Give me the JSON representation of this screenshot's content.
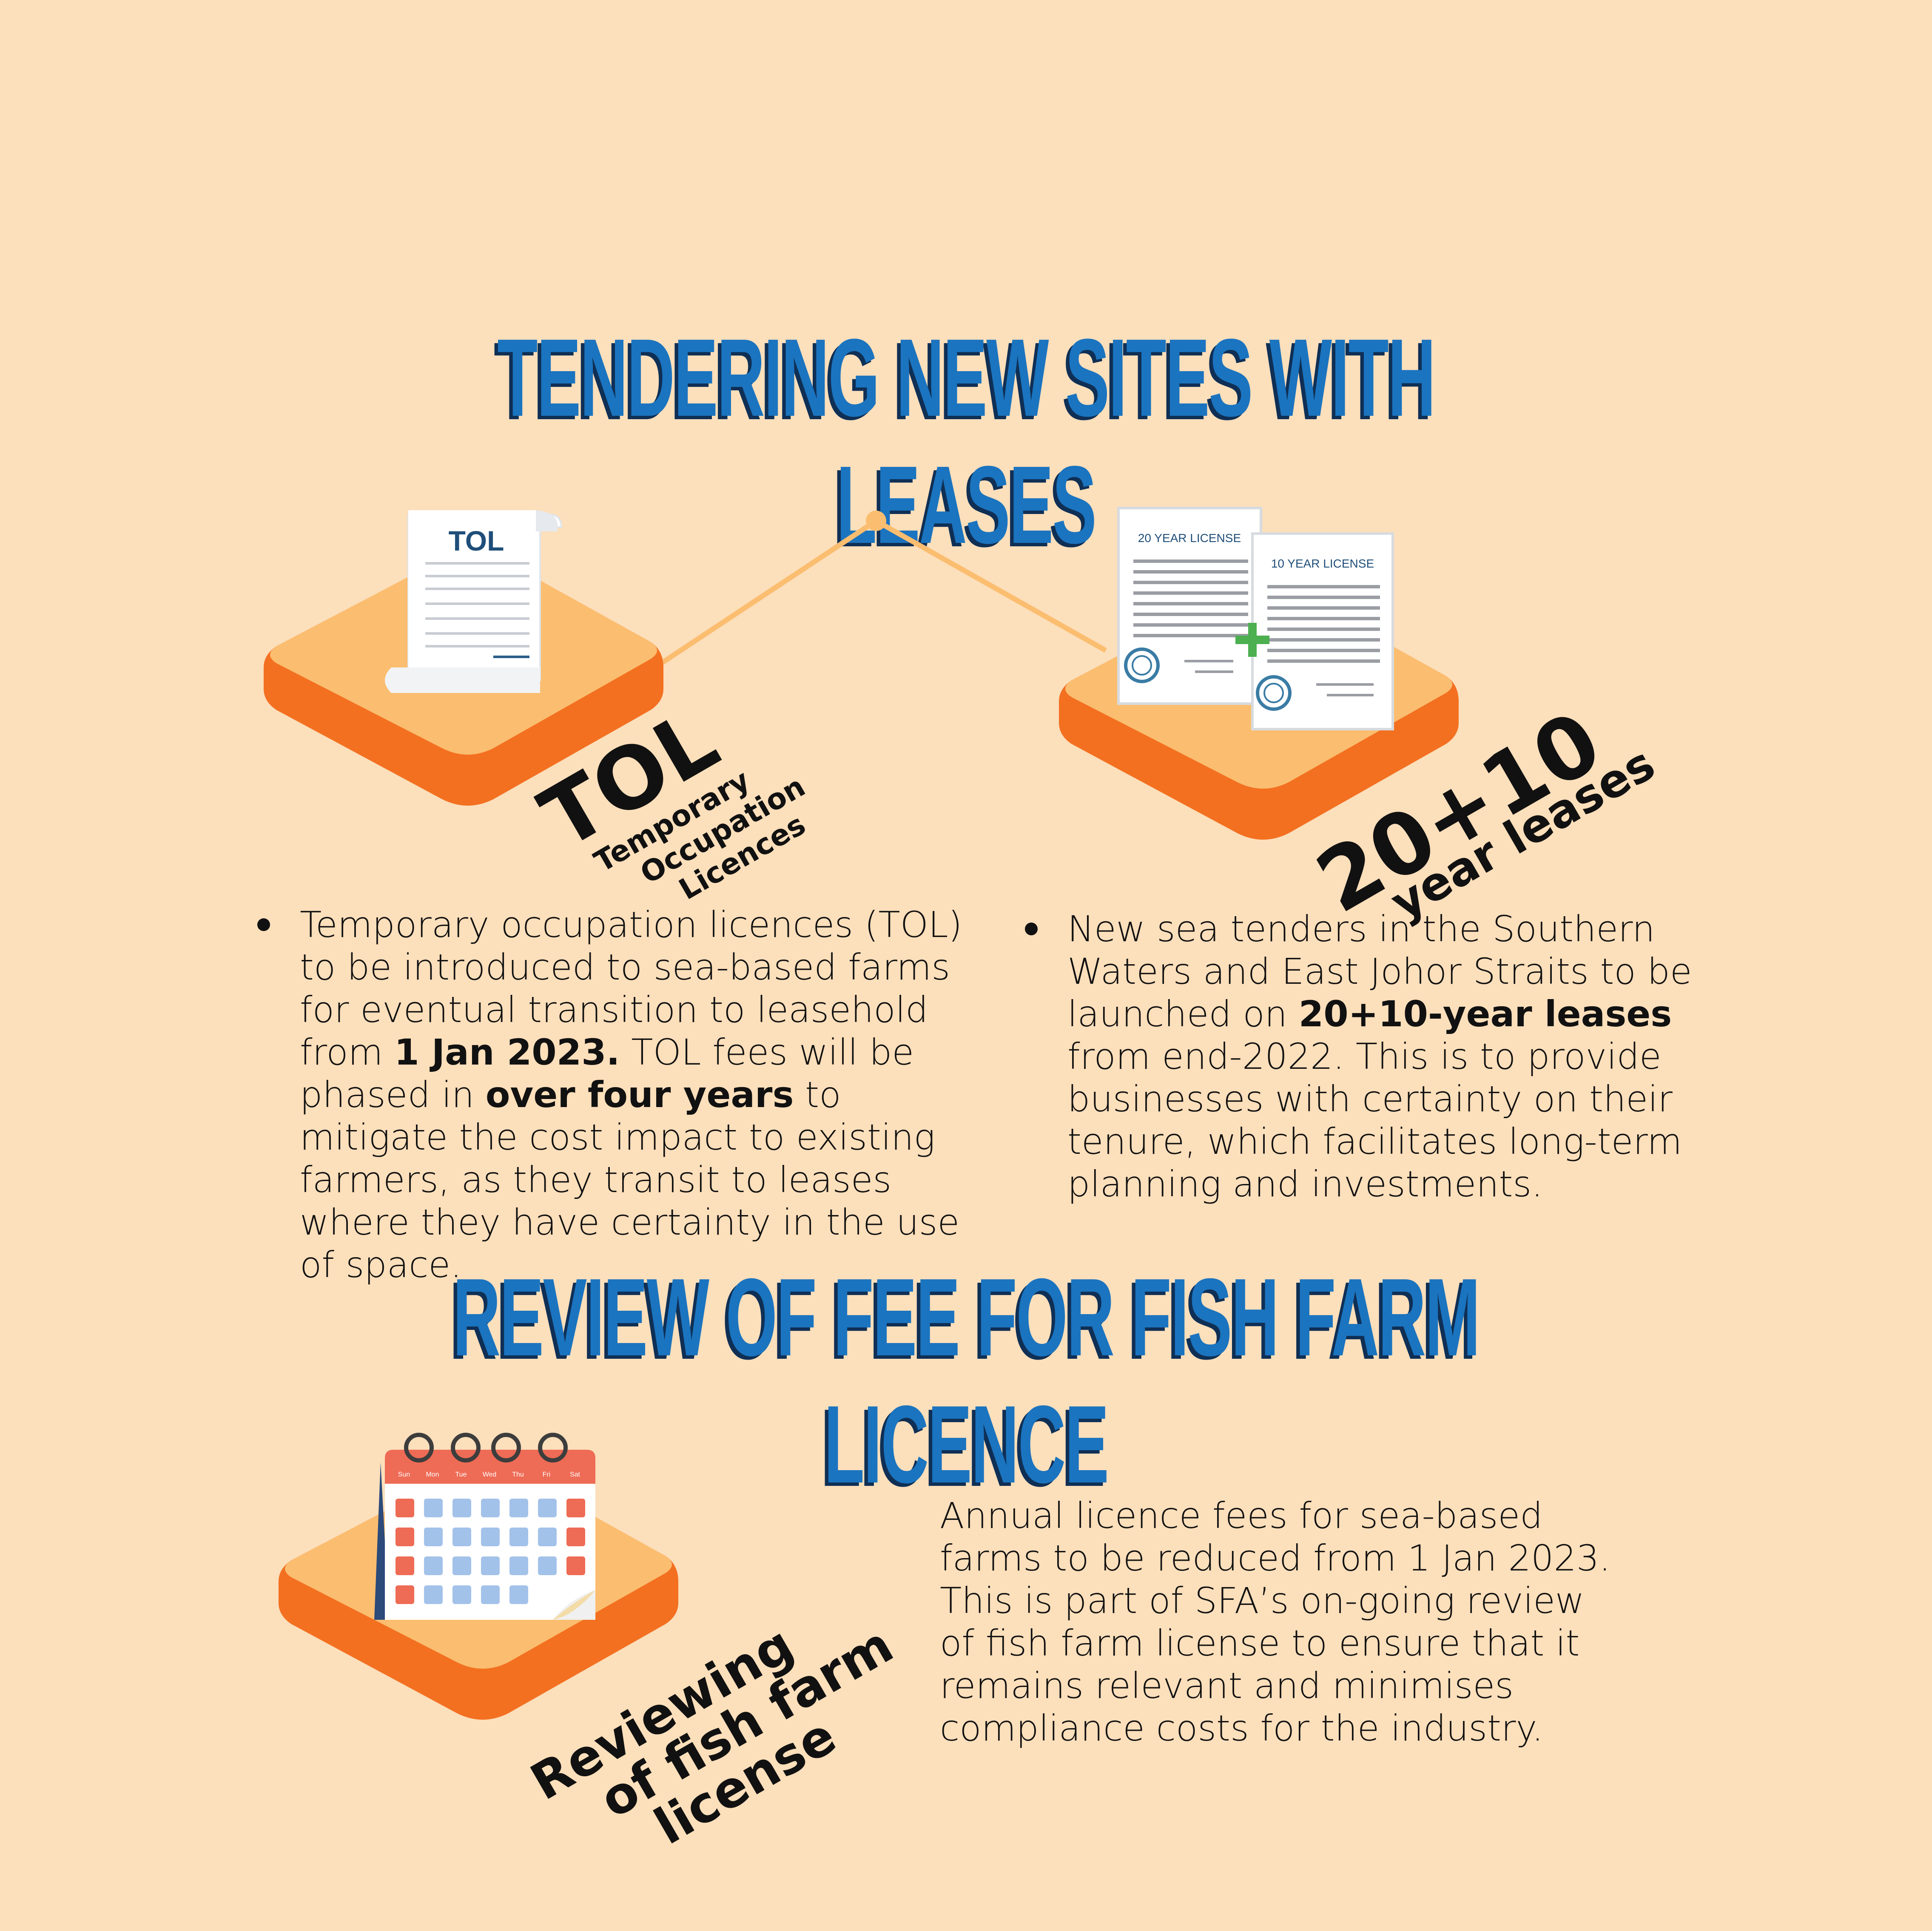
{
  "headings": {
    "section1": "TENDERING NEW SITES WITH LEASES",
    "section2": "REVIEW OF FEE FOR FISH FARM LICENCE"
  },
  "tol_card": {
    "doc_title": "TOL",
    "label_main": "TOL",
    "label_sub": [
      "Temporary",
      "Occupation",
      "Licences"
    ]
  },
  "lease_card": {
    "doc1_title": "20 YEAR LICENSE",
    "doc2_title": "10 YEAR LICENSE",
    "label_main": "20+10",
    "label_sub": "year leases"
  },
  "calendar_card": {
    "days": [
      "Sun",
      "Mon",
      "Tue",
      "Wed",
      "Thu",
      "Fri",
      "Sat"
    ],
    "label_lines": [
      "Reviewing",
      "of fish farm",
      "license"
    ]
  },
  "paragraphs": {
    "tol": {
      "p1": "Temporary occupation licences (TOL) to be introduced to sea-based farms for eventual transition to leasehold from ",
      "b1": "1 Jan 2023.",
      "p2": " TOL fees will be phased in ",
      "b2": "over four years",
      "p3": " to mitigate the cost impact to existing farmers, as they transit to leases where they have certainty in the use of space."
    },
    "lease": {
      "p1": "New sea tenders in the Southern Waters and East Johor Straits to be launched on ",
      "b1": "20+10-year leases",
      "p2": " from end-2022. This is to provide businesses with certainty on their tenure, which facilitates long-term planning and investments."
    },
    "review": "Annual licence fees for sea-based farms to be reduced from 1 Jan 2023. This is part of SFA’s on-going review of fish farm license to ensure that it remains relevant and minimises compliance costs for the industry."
  },
  "colors": {
    "background": "#fcdfbb",
    "heading_blue": "#1b74bf",
    "heading_shadow": "#0f2f55",
    "platform_top": "#fbbd6f",
    "platform_side": "#f37021",
    "connector": "#fbbd6f",
    "calendar_red": "#ee6b55",
    "calendar_blue": "#a3c2ea"
  }
}
